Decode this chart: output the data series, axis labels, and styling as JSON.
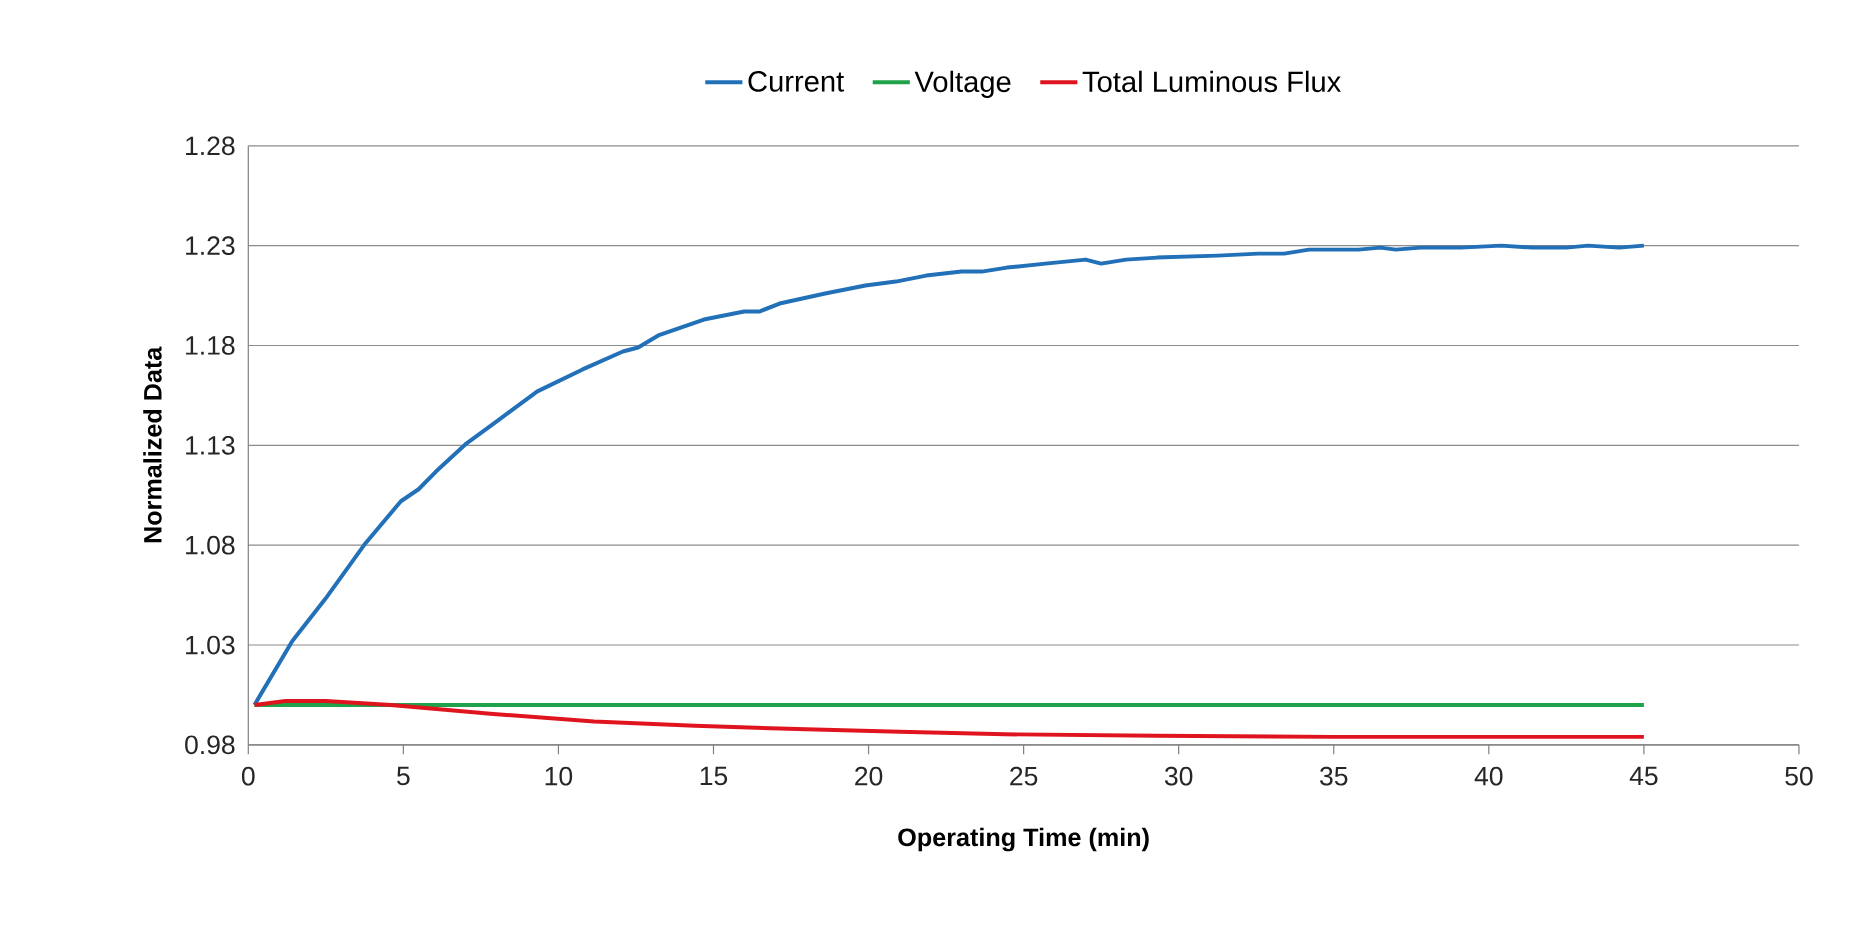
{
  "chart_data": {
    "type": "line",
    "xlabel": "Operating Time (min)",
    "ylabel": "Normalized Data",
    "xlim": [
      0,
      50
    ],
    "xticks": [
      0,
      5,
      10,
      15,
      20,
      25,
      30,
      35,
      40,
      45,
      50
    ],
    "ylim": [
      0.98,
      1.28
    ],
    "yticks": [
      0.98,
      1.03,
      1.08,
      1.13,
      1.18,
      1.23,
      1.28
    ],
    "grid": "y",
    "legend": "top",
    "marker": "none",
    "line_style": "solid",
    "series": [
      {
        "name": "Current",
        "color": "#2170b8",
        "x": [
          0.2,
          1.42,
          2.48,
          3.78,
          4.92,
          5.49,
          6.06,
          7.04,
          8.01,
          9.32,
          10.78,
          12.08,
          12.57,
          13.22,
          14.69,
          15.99,
          16.48,
          17.13,
          18.6,
          19.9,
          20.88,
          21.86,
          23.0,
          23.65,
          24.46,
          25.7,
          27.0,
          27.5,
          28.3,
          29.3,
          31.26,
          32.57,
          33.4,
          34.2,
          35.8,
          36.5,
          37.0,
          37.8,
          39.1,
          40.4,
          41.4,
          42.5,
          43.2,
          44.2,
          45.0
        ],
        "values": [
          1.0,
          1.032,
          1.053,
          1.081,
          1.102,
          1.108,
          1.117,
          1.131,
          1.142,
          1.157,
          1.168,
          1.177,
          1.179,
          1.185,
          1.193,
          1.197,
          1.197,
          1.201,
          1.206,
          1.21,
          1.212,
          1.215,
          1.217,
          1.217,
          1.219,
          1.221,
          1.223,
          1.221,
          1.223,
          1.224,
          1.225,
          1.226,
          1.226,
          1.228,
          1.228,
          1.229,
          1.228,
          1.229,
          1.229,
          1.23,
          1.229,
          1.229,
          1.23,
          1.229,
          1.23
        ]
      },
      {
        "name": "Voltage",
        "color": "#1fa24a",
        "x": [
          0.2,
          5,
          10,
          15,
          20,
          25,
          30,
          35,
          40,
          45
        ],
        "values": [
          1.0,
          1.0,
          1.0,
          1.0,
          1.0,
          1.0,
          1.0,
          1.0,
          1.0,
          1.0
        ]
      },
      {
        "name": "Total Luminous Flux",
        "color": "#e0141e",
        "x": [
          0.2,
          1.2,
          2.5,
          4.6,
          7.9,
          11.15,
          14.4,
          17.7,
          21,
          24.4,
          29.3,
          35,
          45
        ],
        "values": [
          1.0,
          1.002,
          1.002,
          1.0,
          0.9955,
          0.9917,
          0.9896,
          0.9879,
          0.9866,
          0.9853,
          0.9846,
          0.984,
          0.984
        ]
      }
    ]
  }
}
